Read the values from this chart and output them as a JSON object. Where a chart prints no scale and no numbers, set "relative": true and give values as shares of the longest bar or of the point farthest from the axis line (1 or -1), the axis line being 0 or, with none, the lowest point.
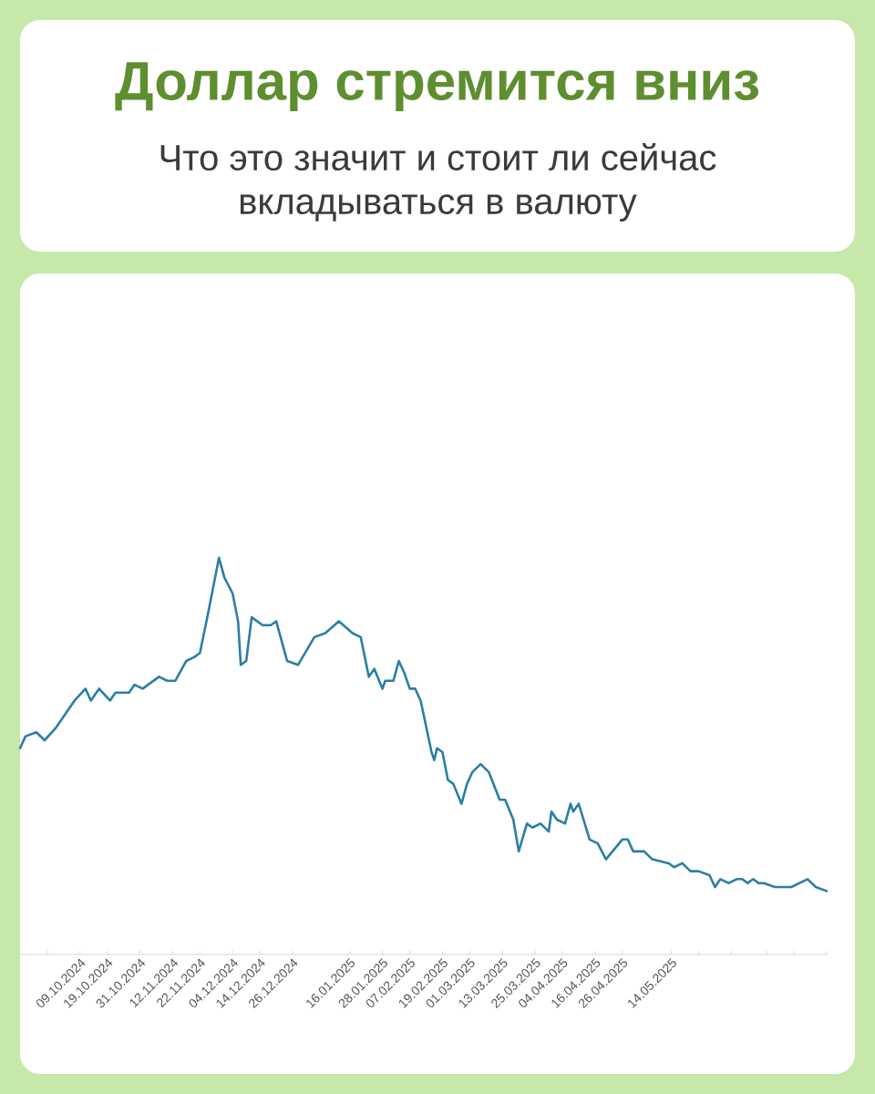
{
  "chart_data": {
    "type": "line",
    "title": "Доллар стремится вниз",
    "subtitle": "Что это значит и стоит ли сейчас вкладываться в валюту",
    "relative": true,
    "xlim": [
      "2024-09-17",
      "2025-07-10"
    ],
    "xticks": [
      {
        "value": "2024-09-27",
        "label": null
      },
      {
        "value": "2024-10-09",
        "label": "09.10.2024"
      },
      {
        "value": "2024-10-19",
        "label": "19.10.2024"
      },
      {
        "value": "2024-10-31",
        "label": "31.10.2024"
      },
      {
        "value": "2024-11-12",
        "label": "12.11.2024"
      },
      {
        "value": "2024-11-22",
        "label": "22.11.2024"
      },
      {
        "value": "2024-12-04",
        "label": "04.12.2024"
      },
      {
        "value": "2024-12-14",
        "label": "14.12.2024"
      },
      {
        "value": "2024-12-26",
        "label": "26.12.2024"
      },
      {
        "value": "2025-01-16",
        "label": "16.01.2025"
      },
      {
        "value": "2025-01-28",
        "label": "28.01.2025"
      },
      {
        "value": "2025-02-07",
        "label": "07.02.2025"
      },
      {
        "value": "2025-02-19",
        "label": "19.02.2025"
      },
      {
        "value": "2025-03-01",
        "label": "01.03.2025"
      },
      {
        "value": "2025-03-13",
        "label": "13.03.2025"
      },
      {
        "value": "2025-03-25",
        "label": "25.03.2025"
      },
      {
        "value": "2025-04-04",
        "label": "04.04.2025"
      },
      {
        "value": "2025-04-16",
        "label": "16.04.2025"
      },
      {
        "value": "2025-04-26",
        "label": "26.04.2025"
      },
      {
        "value": "2025-05-14",
        "label": "14.05.2025"
      },
      {
        "value": "2025-05-24",
        "label": null
      },
      {
        "value": "2025-06-05",
        "label": null
      },
      {
        "value": "2025-06-18",
        "label": null
      },
      {
        "value": "2025-06-28",
        "label": null
      },
      {
        "value": "2025-07-10",
        "label": null
      }
    ],
    "x": [
      "2024-09-17",
      "2024-09-19",
      "2024-09-23",
      "2024-09-26",
      "2024-09-30",
      "2024-10-04",
      "2024-10-07",
      "2024-10-11",
      "2024-10-13",
      "2024-10-16",
      "2024-10-20",
      "2024-10-22",
      "2024-10-27",
      "2024-10-29",
      "2024-11-01",
      "2024-11-07",
      "2024-11-10",
      "2024-11-13",
      "2024-11-17",
      "2024-11-20",
      "2024-11-22",
      "2024-11-25",
      "2024-11-29",
      "2024-12-01",
      "2024-12-04",
      "2024-12-06",
      "2024-12-07",
      "2024-12-09",
      "2024-12-11",
      "2024-12-15",
      "2024-12-18",
      "2024-12-20",
      "2024-12-24",
      "2024-12-28",
      "2025-01-03",
      "2025-01-07",
      "2025-01-12",
      "2025-01-17",
      "2025-01-20",
      "2025-01-23",
      "2025-01-25",
      "2025-01-28",
      "2025-01-29",
      "2025-02-01",
      "2025-02-03",
      "2025-02-05",
      "2025-02-07",
      "2025-02-09",
      "2025-02-11",
      "2025-02-15",
      "2025-02-16",
      "2025-02-17",
      "2025-02-19",
      "2025-02-21",
      "2025-02-23",
      "2025-02-26",
      "2025-02-28",
      "2025-03-02",
      "2025-03-05",
      "2025-03-08",
      "2025-03-12",
      "2025-03-14",
      "2025-03-17",
      "2025-03-19",
      "2025-03-22",
      "2025-03-24",
      "2025-03-27",
      "2025-03-30",
      "2025-03-31",
      "2025-04-02",
      "2025-04-05",
      "2025-04-07",
      "2025-04-08",
      "2025-04-10",
      "2025-04-14",
      "2025-04-17",
      "2025-04-20",
      "2025-04-26",
      "2025-04-28",
      "2025-04-30",
      "2025-05-04",
      "2025-05-07",
      "2025-05-13",
      "2025-05-15",
      "2025-05-18",
      "2025-05-21",
      "2025-05-24",
      "2025-05-28",
      "2025-05-30",
      "2025-06-01",
      "2025-06-04",
      "2025-06-07",
      "2025-06-09",
      "2025-06-11",
      "2025-06-13",
      "2025-06-15",
      "2025-06-17",
      "2025-06-21",
      "2025-06-24",
      "2025-06-27",
      "2025-06-30",
      "2025-07-03",
      "2025-07-06",
      "2025-07-10"
    ],
    "series": [
      {
        "color": "#2b7ea6",
        "values": [
          0.52,
          0.55,
          0.56,
          0.54,
          0.57,
          0.61,
          0.64,
          0.67,
          0.64,
          0.67,
          0.64,
          0.66,
          0.66,
          0.68,
          0.67,
          0.7,
          0.69,
          0.69,
          0.74,
          0.75,
          0.76,
          0.86,
          1,
          0.95,
          0.91,
          0.84,
          0.73,
          0.74,
          0.85,
          0.83,
          0.83,
          0.84,
          0.74,
          0.73,
          0.8,
          0.81,
          0.84,
          0.81,
          0.8,
          0.7,
          0.72,
          0.67,
          0.69,
          0.69,
          0.74,
          0.71,
          0.67,
          0.67,
          0.64,
          0.51,
          0.49,
          0.52,
          0.51,
          0.44,
          0.43,
          0.38,
          0.43,
          0.46,
          0.48,
          0.46,
          0.39,
          0.39,
          0.34,
          0.26,
          0.33,
          0.32,
          0.33,
          0.31,
          0.36,
          0.34,
          0.33,
          0.38,
          0.36,
          0.38,
          0.29,
          0.28,
          0.24,
          0.29,
          0.29,
          0.26,
          0.26,
          0.24,
          0.23,
          0.22,
          0.23,
          0.21,
          0.21,
          0.2,
          0.17,
          0.19,
          0.18,
          0.19,
          0.19,
          0.18,
          0.19,
          0.18,
          0.18,
          0.17,
          0.17,
          0.17,
          0.18,
          0.19,
          0.17,
          0.16
        ]
      }
    ]
  }
}
